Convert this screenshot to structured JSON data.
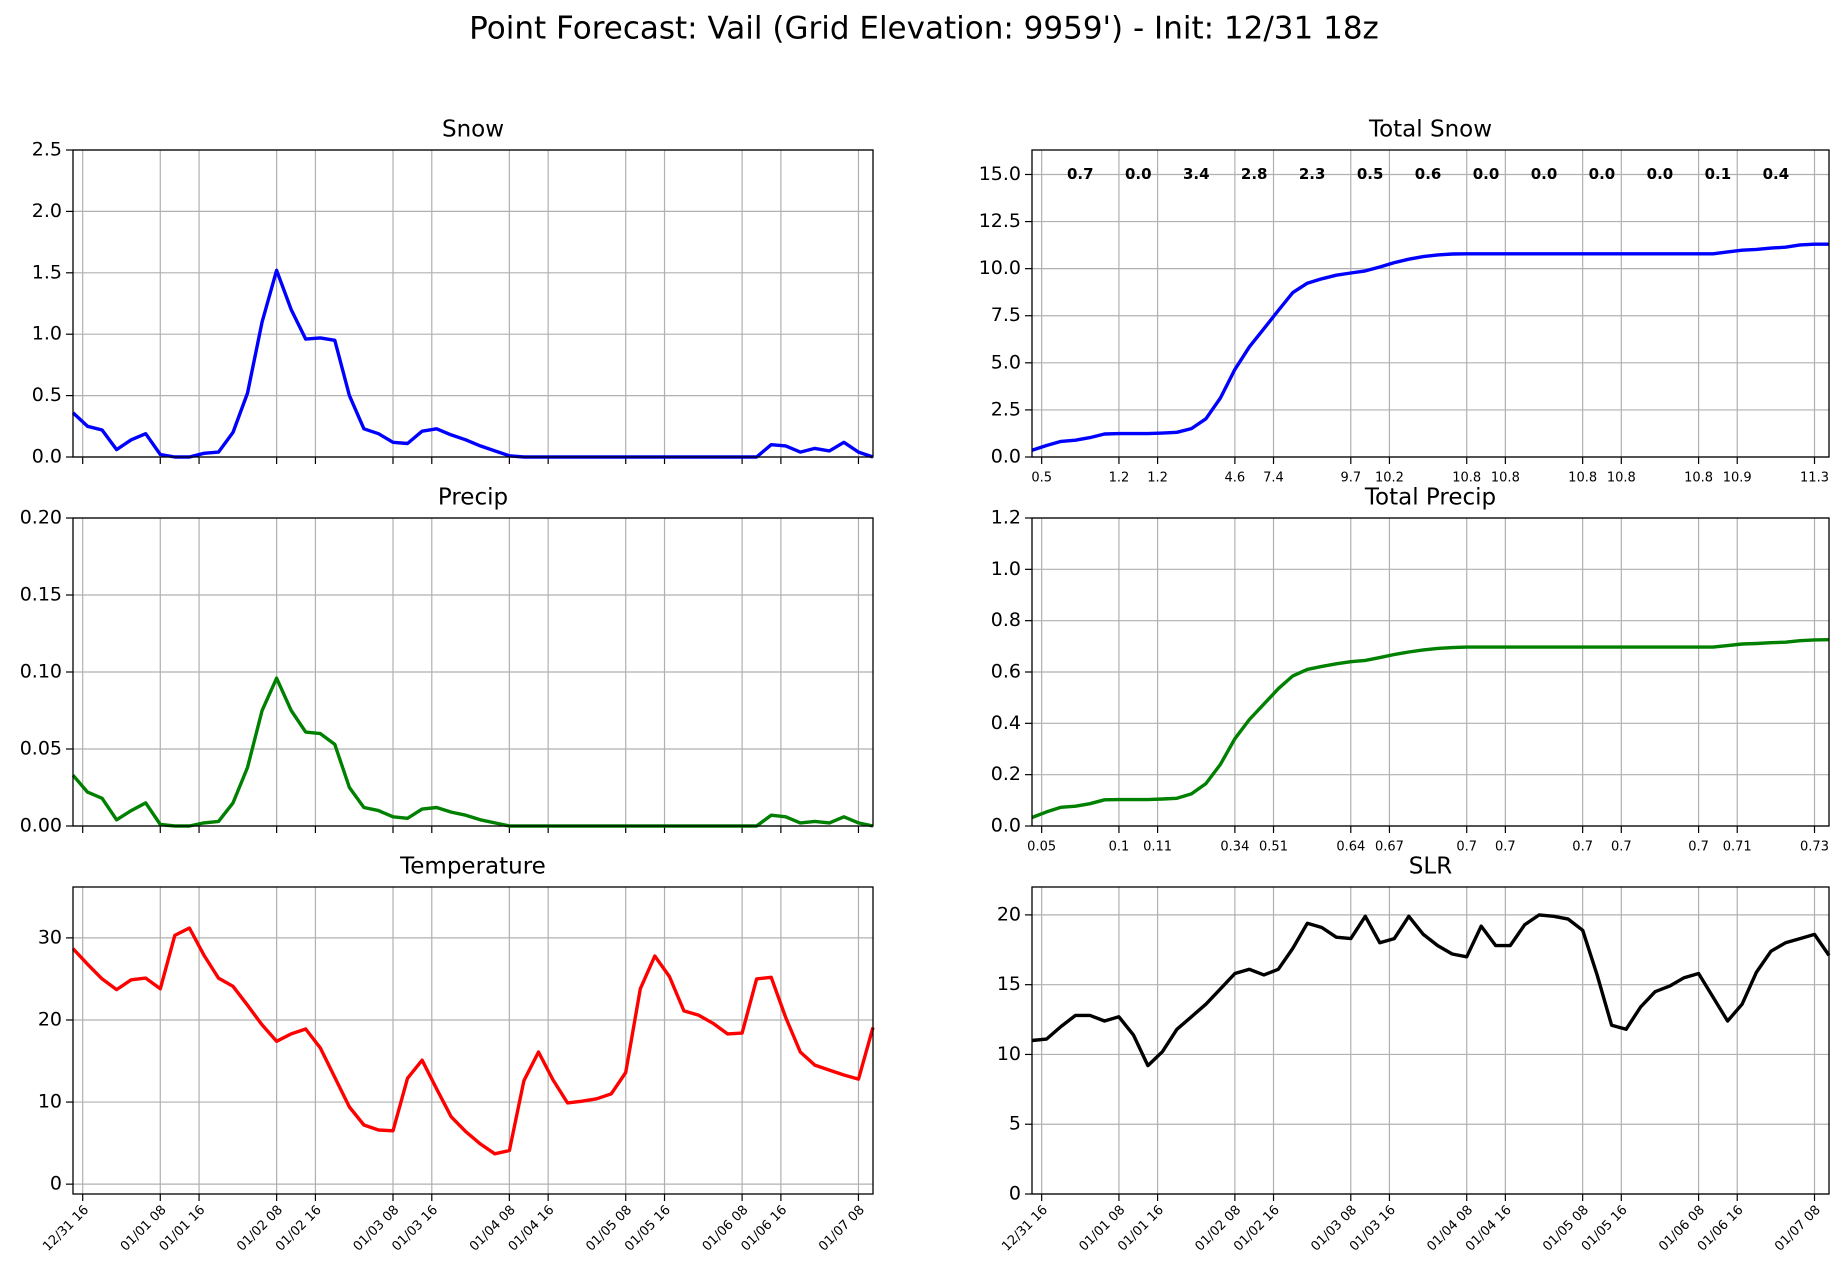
{
  "title": "Point Forecast: Vail (Grid Elevation: 9959') - Init: 12/31 18z",
  "chart_data": [
    {
      "type": "line",
      "title": "Snow",
      "color": "blue",
      "grid": true,
      "x": [
        "12/31 14",
        "12/31 17",
        "12/31 20",
        "12/31 23",
        "01/01 02",
        "01/01 05",
        "01/01 08",
        "01/01 11",
        "01/01 14",
        "01/01 17",
        "01/01 20",
        "01/01 23",
        "01/02 02",
        "01/02 05",
        "01/02 08",
        "01/02 11",
        "01/02 14",
        "01/02 17",
        "01/02 20",
        "01/02 23",
        "01/03 02",
        "01/03 05",
        "01/03 08",
        "01/03 11",
        "01/03 14",
        "01/03 17",
        "01/03 20",
        "01/03 23",
        "01/04 02",
        "01/04 05",
        "01/04 08",
        "01/04 11",
        "01/04 14",
        "01/04 17",
        "01/04 20",
        "01/04 23",
        "01/05 02",
        "01/05 05",
        "01/05 08",
        "01/05 11",
        "01/05 14",
        "01/05 17",
        "01/05 20",
        "01/05 23",
        "01/06 02",
        "01/06 05",
        "01/06 08",
        "01/06 11",
        "01/06 14",
        "01/06 17",
        "01/06 20",
        "01/06 23",
        "01/07 02",
        "01/07 05",
        "01/07 08",
        "01/07 11"
      ],
      "values": [
        0.36,
        0.25,
        0.22,
        0.06,
        0.14,
        0.19,
        0.02,
        0,
        0,
        0.03,
        0.04,
        0.2,
        0.52,
        1.1,
        1.52,
        1.2,
        0.96,
        0.97,
        0.95,
        0.5,
        0.23,
        0.19,
        0.12,
        0.11,
        0.21,
        0.23,
        0.18,
        0.14,
        0.09,
        0.05,
        0.01,
        0,
        0,
        0,
        0,
        0,
        0,
        0,
        0,
        0,
        0,
        0,
        0,
        0,
        0,
        0,
        0,
        0,
        0.1,
        0.09,
        0.04,
        0.07,
        0.05,
        0.12,
        0.04,
        0
      ],
      "xlim": [
        "12/31 14",
        "01/07 11"
      ],
      "xticks": [
        "12/31 16",
        "01/01 08",
        "01/01 16",
        "01/02 08",
        "01/02 16",
        "01/03 08",
        "01/03 16",
        "01/04 08",
        "01/04 16",
        "01/05 08",
        "01/05 16",
        "01/06 08",
        "01/06 16",
        "01/07 08"
      ],
      "ylim": [
        0,
        2.5
      ],
      "yticks": [
        {
          "value": 0,
          "label": "0.0"
        },
        0.5,
        {
          "value": 1,
          "label": "1.0"
        },
        1.5,
        {
          "value": 2,
          "label": "2.0"
        },
        2.5
      ]
    },
    {
      "type": "line",
      "title": "Precip",
      "color": "green",
      "grid": true,
      "x": [
        "12/31 14",
        "12/31 17",
        "12/31 20",
        "12/31 23",
        "01/01 02",
        "01/01 05",
        "01/01 08",
        "01/01 11",
        "01/01 14",
        "01/01 17",
        "01/01 20",
        "01/01 23",
        "01/02 02",
        "01/02 05",
        "01/02 08",
        "01/02 11",
        "01/02 14",
        "01/02 17",
        "01/02 20",
        "01/02 23",
        "01/03 02",
        "01/03 05",
        "01/03 08",
        "01/03 11",
        "01/03 14",
        "01/03 17",
        "01/03 20",
        "01/03 23",
        "01/04 02",
        "01/04 05",
        "01/04 08",
        "01/04 11",
        "01/04 14",
        "01/04 17",
        "01/04 20",
        "01/04 23",
        "01/05 02",
        "01/05 05",
        "01/05 08",
        "01/05 11",
        "01/05 14",
        "01/05 17",
        "01/05 20",
        "01/05 23",
        "01/06 02",
        "01/06 05",
        "01/06 08",
        "01/06 11",
        "01/06 14",
        "01/06 17",
        "01/06 20",
        "01/06 23",
        "01/07 02",
        "01/07 05",
        "01/07 08",
        "01/07 11"
      ],
      "values": [
        0.033,
        0.022,
        0.018,
        0.004,
        0.01,
        0.015,
        0.001,
        0,
        0,
        0.002,
        0.003,
        0.015,
        0.038,
        0.075,
        0.096,
        0.075,
        0.061,
        0.06,
        0.053,
        0.025,
        0.012,
        0.01,
        0.006,
        0.005,
        0.011,
        0.012,
        0.009,
        0.007,
        0.004,
        0.002,
        0,
        0,
        0,
        0,
        0,
        0,
        0,
        0,
        0,
        0,
        0,
        0,
        0,
        0,
        0,
        0,
        0,
        0,
        0.007,
        0.006,
        0.002,
        0.003,
        0.002,
        0.006,
        0.002,
        0
      ],
      "xlim": [
        "12/31 14",
        "01/07 11"
      ],
      "xticks": [
        "12/31 16",
        "01/01 08",
        "01/01 16",
        "01/02 08",
        "01/02 16",
        "01/03 08",
        "01/03 16",
        "01/04 08",
        "01/04 16",
        "01/05 08",
        "01/05 16",
        "01/06 08",
        "01/06 16",
        "01/07 08"
      ],
      "ylim": [
        0,
        0.2
      ],
      "yticks": [
        {
          "value": 0,
          "label": "0.00"
        },
        {
          "value": 0.05,
          "label": "0.05"
        },
        {
          "value": 0.1,
          "label": "0.10"
        },
        {
          "value": 0.15,
          "label": "0.15"
        },
        {
          "value": 0.2,
          "label": "0.20"
        }
      ]
    },
    {
      "type": "line",
      "title": "Temperature",
      "color": "red",
      "grid": true,
      "x": [
        "12/31 14",
        "12/31 17",
        "12/31 20",
        "12/31 23",
        "01/01 02",
        "01/01 05",
        "01/01 08",
        "01/01 11",
        "01/01 14",
        "01/01 17",
        "01/01 20",
        "01/01 23",
        "01/02 02",
        "01/02 05",
        "01/02 08",
        "01/02 11",
        "01/02 14",
        "01/02 17",
        "01/02 20",
        "01/02 23",
        "01/03 02",
        "01/03 05",
        "01/03 08",
        "01/03 11",
        "01/03 14",
        "01/03 17",
        "01/03 20",
        "01/03 23",
        "01/04 02",
        "01/04 05",
        "01/04 08",
        "01/04 11",
        "01/04 14",
        "01/04 17",
        "01/04 20",
        "01/04 23",
        "01/05 02",
        "01/05 05",
        "01/05 08",
        "01/05 11",
        "01/05 14",
        "01/05 17",
        "01/05 20",
        "01/05 23",
        "01/06 02",
        "01/06 05",
        "01/06 08",
        "01/06 11",
        "01/06 14",
        "01/06 17",
        "01/06 20",
        "01/06 23",
        "01/07 02",
        "01/07 05",
        "01/07 08",
        "01/07 11"
      ],
      "values": [
        28.7,
        26.8,
        25.0,
        23.7,
        24.9,
        25.1,
        23.8,
        30.3,
        31.2,
        27.9,
        25.1,
        24.1,
        21.8,
        19.4,
        17.4,
        18.3,
        18.9,
        16.6,
        13.0,
        9.4,
        7.2,
        6.6,
        6.5,
        12.9,
        15.1,
        11.6,
        8.2,
        6.4,
        4.9,
        3.7,
        4.1,
        12.6,
        16.1,
        12.7,
        9.9,
        10.1,
        10.4,
        11.0,
        13.6,
        23.8,
        27.8,
        25.3,
        21.1,
        20.6,
        19.6,
        18.3,
        18.4,
        25.0,
        25.2,
        20.3,
        16.1,
        14.5,
        13.9,
        13.3,
        12.8,
        19.1
      ],
      "xlim": [
        "12/31 14",
        "01/07 11"
      ],
      "xticks": [
        "12/31 16",
        "01/01 08",
        "01/01 16",
        "01/02 08",
        "01/02 16",
        "01/03 08",
        "01/03 16",
        "01/04 08",
        "01/04 16",
        "01/05 08",
        "01/05 16",
        "01/06 08",
        "01/06 16",
        "01/07 08"
      ],
      "ylim": [
        -1.2,
        36.2
      ],
      "yticks": [
        0,
        10,
        20,
        30
      ]
    },
    {
      "type": "line",
      "title": "Total Snow",
      "color": "blue",
      "grid": true,
      "x": [
        "12/31 14",
        "12/31 17",
        "12/31 20",
        "12/31 23",
        "01/01 02",
        "01/01 05",
        "01/01 08",
        "01/01 11",
        "01/01 14",
        "01/01 17",
        "01/01 20",
        "01/01 23",
        "01/02 02",
        "01/02 05",
        "01/02 08",
        "01/02 11",
        "01/02 14",
        "01/02 17",
        "01/02 20",
        "01/02 23",
        "01/03 02",
        "01/03 05",
        "01/03 08",
        "01/03 11",
        "01/03 14",
        "01/03 17",
        "01/03 20",
        "01/03 23",
        "01/04 02",
        "01/04 05",
        "01/04 08",
        "01/04 11",
        "01/04 14",
        "01/04 17",
        "01/04 20",
        "01/04 23",
        "01/05 02",
        "01/05 05",
        "01/05 08",
        "01/05 11",
        "01/05 14",
        "01/05 17",
        "01/05 20",
        "01/05 23",
        "01/06 02",
        "01/06 05",
        "01/06 08",
        "01/06 11",
        "01/06 14",
        "01/06 17",
        "01/06 20",
        "01/06 23",
        "01/07 02",
        "01/07 05",
        "01/07 08",
        "01/07 11"
      ],
      "values": [
        0.36,
        0.61,
        0.83,
        0.89,
        1.03,
        1.22,
        1.24,
        1.24,
        1.24,
        1.27,
        1.31,
        1.51,
        2.03,
        3.13,
        4.65,
        5.85,
        6.81,
        7.78,
        8.73,
        9.23,
        9.46,
        9.65,
        9.77,
        9.88,
        10.09,
        10.32,
        10.5,
        10.64,
        10.73,
        10.78,
        10.79,
        10.79,
        10.79,
        10.79,
        10.79,
        10.79,
        10.79,
        10.79,
        10.79,
        10.79,
        10.79,
        10.79,
        10.79,
        10.79,
        10.79,
        10.79,
        10.79,
        10.79,
        10.89,
        10.98,
        11.02,
        11.09,
        11.14,
        11.26,
        11.3,
        11.3
      ],
      "xlim": [
        "12/31 14",
        "01/07 11"
      ],
      "xticks": [
        {
          "value": "12/31 16",
          "label": "0.5"
        },
        {
          "value": "01/01 08",
          "label": "1.2"
        },
        {
          "value": "01/01 16",
          "label": "1.2"
        },
        {
          "value": "01/02 08",
          "label": "4.6"
        },
        {
          "value": "01/02 16",
          "label": "7.4"
        },
        {
          "value": "01/03 08",
          "label": "9.7"
        },
        {
          "value": "01/03 16",
          "label": "10.2"
        },
        {
          "value": "01/04 08",
          "label": "10.8"
        },
        {
          "value": "01/04 16",
          "label": "10.8"
        },
        {
          "value": "01/05 08",
          "label": "10.8"
        },
        {
          "value": "01/05 16",
          "label": "10.8"
        },
        {
          "value": "01/06 08",
          "label": "10.8"
        },
        {
          "value": "01/06 16",
          "label": "10.9"
        },
        {
          "value": "01/07 08",
          "label": "11.3"
        }
      ],
      "ylim": [
        0,
        16.3
      ],
      "yticks": [
        {
          "value": 0,
          "label": "0.0"
        },
        2.5,
        {
          "value": 5,
          "label": "5.0"
        },
        7.5,
        {
          "value": 10,
          "label": "10.0"
        },
        12.5,
        {
          "value": 15,
          "label": "15.0"
        }
      ],
      "annotation_color": "blue",
      "annotations": [
        {
          "x": "01/01 00",
          "y": 15,
          "text": "0.7"
        },
        {
          "x": "01/01 12",
          "y": 15,
          "text": "0.0"
        },
        {
          "x": "01/02 00",
          "y": 15,
          "text": "3.4"
        },
        {
          "x": "01/02 12",
          "y": 15,
          "text": "2.8"
        },
        {
          "x": "01/03 00",
          "y": 15,
          "text": "2.3"
        },
        {
          "x": "01/03 12",
          "y": 15,
          "text": "0.5"
        },
        {
          "x": "01/04 00",
          "y": 15,
          "text": "0.6"
        },
        {
          "x": "01/04 12",
          "y": 15,
          "text": "0.0"
        },
        {
          "x": "01/05 00",
          "y": 15,
          "text": "0.0"
        },
        {
          "x": "01/05 12",
          "y": 15,
          "text": "0.0"
        },
        {
          "x": "01/06 00",
          "y": 15,
          "text": "0.0"
        },
        {
          "x": "01/06 12",
          "y": 15,
          "text": "0.1"
        },
        {
          "x": "01/07 00",
          "y": 15,
          "text": "0.4"
        }
      ]
    },
    {
      "type": "line",
      "title": "Total Precip",
      "color": "green",
      "grid": true,
      "x": [
        "12/31 14",
        "12/31 17",
        "12/31 20",
        "12/31 23",
        "01/01 02",
        "01/01 05",
        "01/01 08",
        "01/01 11",
        "01/01 14",
        "01/01 17",
        "01/01 20",
        "01/01 23",
        "01/02 02",
        "01/02 05",
        "01/02 08",
        "01/02 11",
        "01/02 14",
        "01/02 17",
        "01/02 20",
        "01/02 23",
        "01/03 02",
        "01/03 05",
        "01/03 08",
        "01/03 11",
        "01/03 14",
        "01/03 17",
        "01/03 20",
        "01/03 23",
        "01/04 02",
        "01/04 05",
        "01/04 08",
        "01/04 11",
        "01/04 14",
        "01/04 17",
        "01/04 20",
        "01/04 23",
        "01/05 02",
        "01/05 05",
        "01/05 08",
        "01/05 11",
        "01/05 14",
        "01/05 17",
        "01/05 20",
        "01/05 23",
        "01/06 02",
        "01/06 05",
        "01/06 08",
        "01/06 11",
        "01/06 14",
        "01/06 17",
        "01/06 20",
        "01/06 23",
        "01/07 02",
        "01/07 05",
        "01/07 08",
        "01/07 11"
      ],
      "values": [
        0.033,
        0.055,
        0.073,
        0.077,
        0.087,
        0.102,
        0.103,
        0.103,
        0.103,
        0.105,
        0.108,
        0.125,
        0.165,
        0.24,
        0.34,
        0.415,
        0.475,
        0.535,
        0.585,
        0.61,
        0.622,
        0.632,
        0.64,
        0.645,
        0.656,
        0.668,
        0.678,
        0.686,
        0.692,
        0.695,
        0.697,
        0.697,
        0.697,
        0.697,
        0.697,
        0.697,
        0.697,
        0.697,
        0.697,
        0.697,
        0.697,
        0.697,
        0.697,
        0.697,
        0.697,
        0.697,
        0.697,
        0.697,
        0.703,
        0.709,
        0.711,
        0.714,
        0.716,
        0.722,
        0.725,
        0.726
      ],
      "xlim": [
        "12/31 14",
        "01/07 11"
      ],
      "xticks": [
        {
          "value": "12/31 16",
          "label": "0.05"
        },
        {
          "value": "01/01 08",
          "label": "0.1"
        },
        {
          "value": "01/01 16",
          "label": "0.11"
        },
        {
          "value": "01/02 08",
          "label": "0.34"
        },
        {
          "value": "01/02 16",
          "label": "0.51"
        },
        {
          "value": "01/03 08",
          "label": "0.64"
        },
        {
          "value": "01/03 16",
          "label": "0.67"
        },
        {
          "value": "01/04 08",
          "label": "0.7"
        },
        {
          "value": "01/04 16",
          "label": "0.7"
        },
        {
          "value": "01/05 08",
          "label": "0.7"
        },
        {
          "value": "01/05 16",
          "label": "0.7"
        },
        {
          "value": "01/06 08",
          "label": "0.7"
        },
        {
          "value": "01/06 16",
          "label": "0.71"
        },
        {
          "value": "01/07 08",
          "label": "0.73"
        }
      ],
      "ylim": [
        0,
        1.2
      ],
      "yticks": [
        {
          "value": 0,
          "label": "0.0"
        },
        0.2,
        0.4,
        0.6,
        0.8,
        {
          "value": 1,
          "label": "1.0"
        },
        1.2
      ]
    },
    {
      "type": "line",
      "title": "SLR",
      "color": "black",
      "grid": true,
      "x": [
        "12/31 14",
        "12/31 17",
        "12/31 20",
        "12/31 23",
        "01/01 02",
        "01/01 05",
        "01/01 08",
        "01/01 11",
        "01/01 14",
        "01/01 17",
        "01/01 20",
        "01/01 23",
        "01/02 02",
        "01/02 05",
        "01/02 08",
        "01/02 11",
        "01/02 14",
        "01/02 17",
        "01/02 20",
        "01/02 23",
        "01/03 02",
        "01/03 05",
        "01/03 08",
        "01/03 11",
        "01/03 14",
        "01/03 17",
        "01/03 20",
        "01/03 23",
        "01/04 02",
        "01/04 05",
        "01/04 08",
        "01/04 11",
        "01/04 14",
        "01/04 17",
        "01/04 20",
        "01/04 23",
        "01/05 02",
        "01/05 05",
        "01/05 08",
        "01/05 11",
        "01/05 14",
        "01/05 17",
        "01/05 20",
        "01/05 23",
        "01/06 02",
        "01/06 05",
        "01/06 08",
        "01/06 11",
        "01/06 14",
        "01/06 17",
        "01/06 20",
        "01/06 23",
        "01/07 02",
        "01/07 05",
        "01/07 08",
        "01/07 11"
      ],
      "values": [
        11.0,
        11.1,
        12.0,
        12.8,
        12.8,
        12.4,
        12.7,
        11.4,
        9.2,
        10.2,
        11.8,
        12.7,
        13.6,
        14.7,
        15.8,
        16.1,
        15.7,
        16.1,
        17.6,
        19.4,
        19.1,
        18.4,
        18.3,
        19.9,
        18.0,
        18.3,
        19.9,
        18.6,
        17.8,
        17.2,
        17.0,
        19.2,
        17.8,
        17.8,
        19.3,
        20.0,
        19.9,
        19.7,
        18.9,
        15.7,
        12.1,
        11.8,
        13.4,
        14.5,
        14.9,
        15.5,
        15.8,
        14.1,
        12.4,
        13.6,
        15.9,
        17.4,
        18.0,
        18.3,
        18.6,
        17.1
      ],
      "xlim": [
        "12/31 14",
        "01/07 11"
      ],
      "xticks": [
        "12/31 16",
        "01/01 08",
        "01/01 16",
        "01/02 08",
        "01/02 16",
        "01/03 08",
        "01/03 16",
        "01/04 08",
        "01/04 16",
        "01/05 08",
        "01/05 16",
        "01/06 08",
        "01/06 16",
        "01/07 08"
      ],
      "ylim": [
        0,
        22
      ],
      "yticks": [
        0,
        5,
        10,
        15,
        20
      ]
    }
  ]
}
